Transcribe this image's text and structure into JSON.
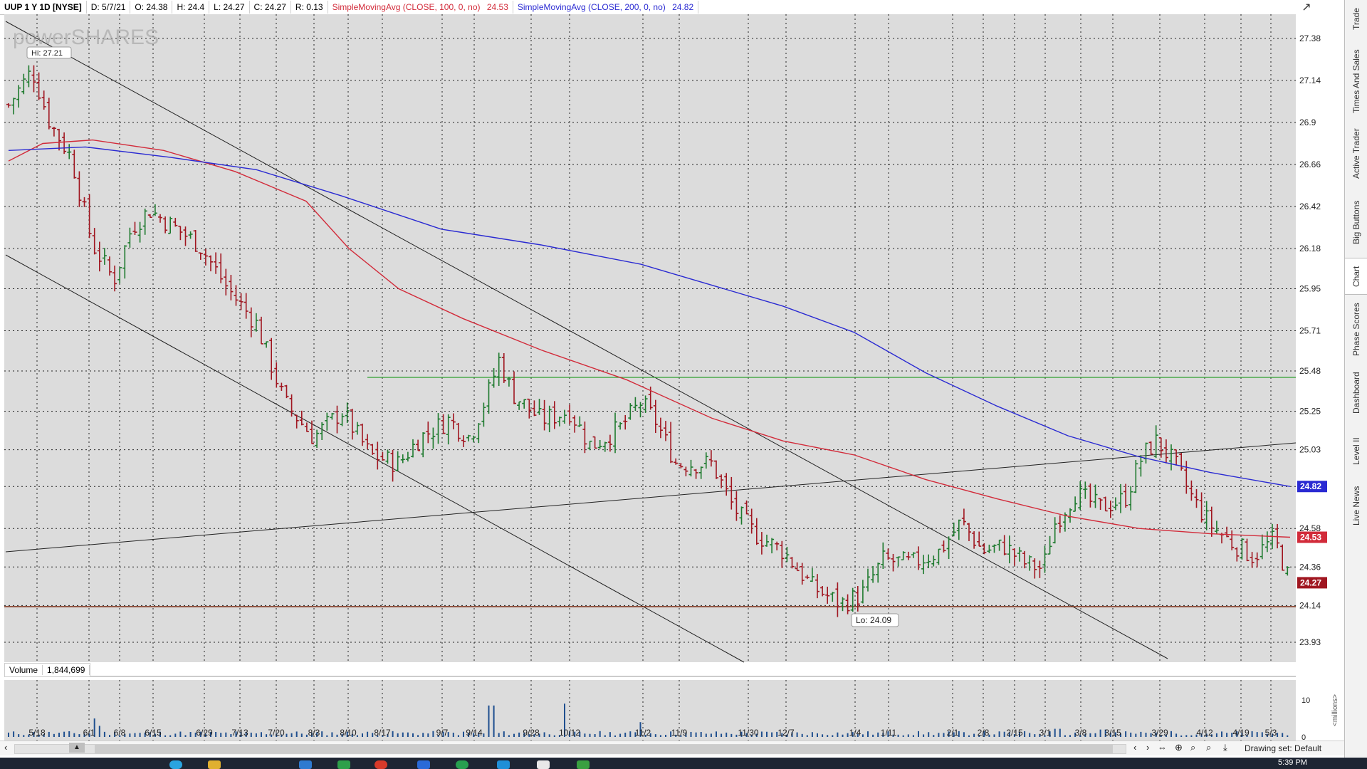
{
  "header": {
    "symbol": "UUP 1 Y 1D [NYSE]",
    "date": "D: 5/7/21",
    "open": "O: 24.38",
    "high": "H: 24.4",
    "low": "L: 24.27",
    "close": "C: 24.27",
    "range": "R: 0.13",
    "sma100_label": "SimpleMovingAvg (CLOSE, 100, 0, no)",
    "sma100_value": "24.53",
    "sma200_label": "SimpleMovingAvg (CLOSE, 200, 0, no)",
    "sma200_value": "24.82"
  },
  "watermark": "powerSHARES",
  "price_axis": {
    "ticks": [
      "27.38",
      "27.14",
      "26.9",
      "26.66",
      "26.42",
      "26.18",
      "25.95",
      "25.71",
      "25.48",
      "25.25",
      "25.03",
      "24.82",
      "24.58",
      "24.36",
      "24.14",
      "23.93"
    ],
    "sma200_badge": "24.82",
    "sma100_badge": "24.53",
    "last_badge": "24.27"
  },
  "annotations": {
    "high": "Hi: 27.21",
    "low": "Lo: 24.09"
  },
  "colors": {
    "sma100": "#d22b3a",
    "sma200": "#2a2ad2",
    "up_bar": "#1e7a2e",
    "down_bar": "#a01620",
    "grid_bg": "#dcdcdc",
    "resistance": "#2ea02e",
    "support": "#7a2a10"
  },
  "volume": {
    "label": "Volume",
    "value": "1,844,699",
    "axis_ticks": [
      "10",
      "0"
    ],
    "unit": "<millions>"
  },
  "time_axis": [
    "5/18",
    "6/1",
    "6/8",
    "6/15",
    "6/29",
    "7/13",
    "7/20",
    "8/3",
    "8/10",
    "8/17",
    "9/7",
    "9/14",
    "9/28",
    "10/12",
    "11/2",
    "11/9",
    "11/30",
    "12/7",
    "1/4",
    "1/11",
    "2/1",
    "2/8",
    "2/15",
    "3/1",
    "3/8",
    "3/15",
    "3/29",
    "4/12",
    "4/19",
    "5/3"
  ],
  "side_tabs": [
    "Trade",
    "Times And Sales",
    "Active Trader",
    "Big Buttons",
    "Chart",
    "Phase Scores",
    "Dashboard",
    "Level II",
    "Live News"
  ],
  "toolbar": {
    "drawing_set": "Drawing set: Default"
  },
  "taskbar": {
    "time": "5:39 PM"
  }
}
